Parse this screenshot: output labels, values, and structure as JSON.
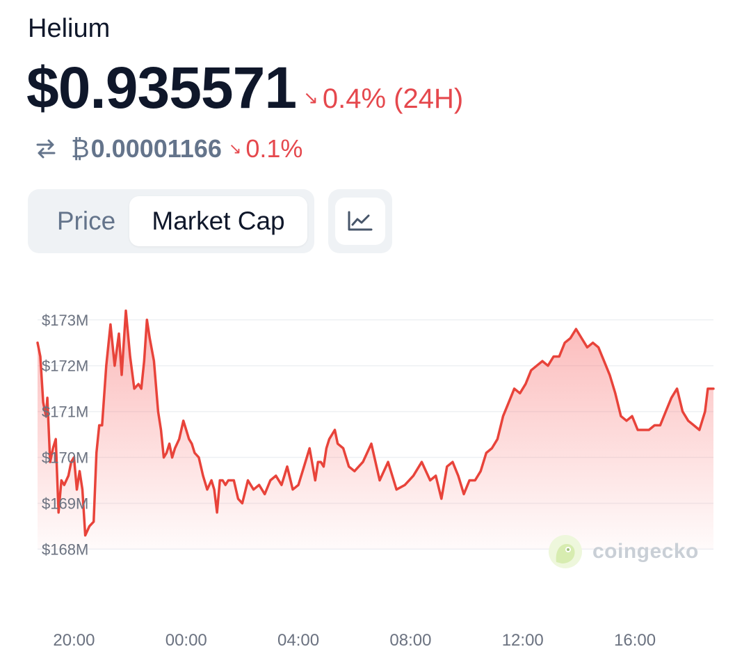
{
  "coin": {
    "name": "Helium"
  },
  "price": {
    "usd": "$0.935571",
    "change_24h": "0.4% (24H)",
    "change_color": "#e5484d"
  },
  "btc": {
    "symbol": "₿",
    "value": "0.00001166",
    "change": "0.1%"
  },
  "tabs": {
    "price_label": "Price",
    "market_cap_label": "Market Cap",
    "selected": "Market Cap"
  },
  "watermark": {
    "text": "coingecko"
  },
  "chart_data": {
    "type": "area",
    "title": "",
    "xlabel": "",
    "ylabel": "",
    "line_color": "#e8433a",
    "fill_color": "#f87171",
    "grid": true,
    "ylim": [
      167.9,
      173.3
    ],
    "y_ticks": [
      {
        "value": 173,
        "label": "$173M"
      },
      {
        "value": 172,
        "label": "$172M"
      },
      {
        "value": 171,
        "label": "$171M"
      },
      {
        "value": 170,
        "label": "$170M"
      },
      {
        "value": 169,
        "label": "$169M"
      },
      {
        "value": 168,
        "label": "$168M"
      }
    ],
    "x_range": [
      -1.3,
      22.8
    ],
    "x_ticks": [
      {
        "value": 0,
        "label": "20:00"
      },
      {
        "value": 4,
        "label": "00:00"
      },
      {
        "value": 8,
        "label": "04:00"
      },
      {
        "value": 12,
        "label": "08:00"
      },
      {
        "value": 16,
        "label": "12:00"
      },
      {
        "value": 20,
        "label": "16:00"
      }
    ],
    "series": [
      {
        "x": [
          -1.3,
          -1.2,
          -1.1,
          -1.0,
          -0.95,
          -0.85,
          -0.75,
          -0.65,
          -0.55,
          -0.45,
          -0.35,
          -0.2,
          -0.1,
          0.0,
          0.1,
          0.2,
          0.3,
          0.4,
          0.55,
          0.7,
          0.8,
          0.9,
          1.0,
          1.15,
          1.3,
          1.45,
          1.6,
          1.7,
          1.85,
          2.0,
          2.15,
          2.3,
          2.4,
          2.5,
          2.6,
          2.7,
          2.85,
          3.0,
          3.1,
          3.2,
          3.3,
          3.4,
          3.5,
          3.6,
          3.75,
          3.9,
          4.0,
          4.1,
          4.2,
          4.3,
          4.45,
          4.6,
          4.75,
          4.9,
          5.0,
          5.1,
          5.2,
          5.3,
          5.4,
          5.5,
          5.6,
          5.7,
          5.85,
          6.0,
          6.2,
          6.4,
          6.6,
          6.8,
          7.0,
          7.2,
          7.4,
          7.6,
          7.8,
          8.0,
          8.2,
          8.4,
          8.6,
          8.7,
          8.8,
          8.9,
          9.0,
          9.1,
          9.2,
          9.3,
          9.4,
          9.6,
          9.8,
          10.0,
          10.3,
          10.6,
          10.9,
          11.2,
          11.5,
          11.8,
          12.1,
          12.4,
          12.7,
          12.9,
          13.1,
          13.3,
          13.5,
          13.7,
          13.9,
          14.1,
          14.3,
          14.5,
          14.7,
          14.9,
          15.1,
          15.3,
          15.5,
          15.7,
          15.9,
          16.1,
          16.3,
          16.5,
          16.7,
          16.9,
          17.1,
          17.3,
          17.5,
          17.7,
          17.9,
          18.1,
          18.3,
          18.5,
          18.7,
          18.9,
          19.1,
          19.3,
          19.5,
          19.7,
          19.9,
          20.1,
          20.3,
          20.5,
          20.7,
          20.9,
          21.1,
          21.3,
          21.5,
          21.7,
          21.9,
          22.1,
          22.3,
          22.5,
          22.6,
          22.7,
          22.8
        ],
        "values": [
          172.5,
          172.2,
          171.2,
          170.9,
          171.3,
          169.9,
          170.2,
          170.4,
          168.8,
          169.5,
          169.4,
          169.6,
          169.9,
          170.0,
          169.3,
          169.7,
          169.3,
          168.3,
          168.5,
          168.6,
          170.1,
          170.7,
          170.7,
          172.0,
          172.9,
          172.0,
          172.7,
          171.8,
          173.2,
          172.2,
          171.5,
          171.6,
          171.5,
          172.1,
          173.0,
          172.6,
          172.1,
          171.0,
          170.6,
          170.0,
          170.1,
          170.3,
          170.0,
          170.2,
          170.4,
          170.8,
          170.6,
          170.4,
          170.3,
          170.1,
          170.0,
          169.6,
          169.3,
          169.5,
          169.3,
          168.8,
          169.5,
          169.5,
          169.4,
          169.5,
          169.5,
          169.5,
          169.1,
          169.0,
          169.5,
          169.3,
          169.4,
          169.2,
          169.5,
          169.6,
          169.4,
          169.8,
          169.3,
          169.4,
          169.8,
          170.2,
          169.5,
          169.9,
          169.9,
          169.8,
          170.2,
          170.4,
          170.5,
          170.6,
          170.3,
          170.2,
          169.8,
          169.7,
          169.9,
          170.3,
          169.5,
          169.9,
          169.3,
          169.4,
          169.6,
          169.9,
          169.5,
          169.6,
          169.1,
          169.8,
          169.9,
          169.6,
          169.2,
          169.5,
          169.5,
          169.7,
          170.1,
          170.2,
          170.4,
          170.9,
          171.2,
          171.5,
          171.4,
          171.6,
          171.9,
          172.0,
          172.1,
          172.0,
          172.2,
          172.2,
          172.5,
          172.6,
          172.8,
          172.6,
          172.4,
          172.5,
          172.4,
          172.1,
          171.8,
          171.4,
          170.9,
          170.8,
          170.9,
          170.6,
          170.6,
          170.6,
          170.7,
          170.7,
          171.0,
          171.3,
          171.5,
          171.0,
          170.8,
          170.7,
          170.6,
          171.0,
          171.5,
          171.5,
          171.5
        ]
      }
    ]
  }
}
